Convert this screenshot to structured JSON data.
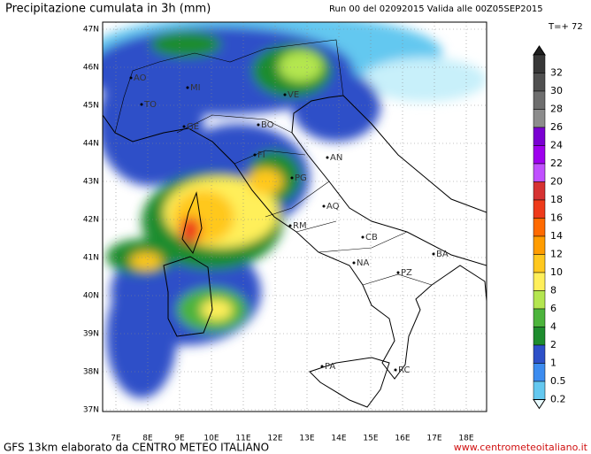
{
  "header": {
    "title": "Precipitazione cumulata in 3h (mm)",
    "run": "Run 00 del 02092015  Valida alle 00Z05SEP2015",
    "step": "T=+ 72"
  },
  "map": {
    "lat_labels": [
      "47N",
      "46N",
      "45N",
      "44N",
      "43N",
      "42N",
      "41N",
      "40N",
      "39N",
      "38N",
      "37N"
    ],
    "lon_labels": [
      "7E",
      "8E",
      "9E",
      "10E",
      "11E",
      "12E",
      "13E",
      "14E",
      "15E",
      "16E",
      "17E",
      "18E"
    ],
    "cities": [
      {
        "label": "AO"
      },
      {
        "label": "TO"
      },
      {
        "label": "MI"
      },
      {
        "label": "GE"
      },
      {
        "label": "BO"
      },
      {
        "label": "VE"
      },
      {
        "label": "FI"
      },
      {
        "label": "PG"
      },
      {
        "label": "AN"
      },
      {
        "label": "AQ"
      },
      {
        "label": "RM"
      },
      {
        "label": "CB"
      },
      {
        "label": "NA"
      },
      {
        "label": "BA"
      },
      {
        "label": "PZ"
      },
      {
        "label": "PA"
      },
      {
        "label": "RC"
      }
    ]
  },
  "legend": {
    "labels": [
      "32",
      "30",
      "28",
      "26",
      "24",
      "22",
      "20",
      "18",
      "16",
      "14",
      "12",
      "10",
      "8",
      "6",
      "4",
      "2",
      "1",
      "0.5",
      "0.2"
    ]
  },
  "footer": {
    "source": "GFS 13km elaborato da CENTRO METEO ITALIANO",
    "website": "www.centrometeoitaliano.it"
  }
}
